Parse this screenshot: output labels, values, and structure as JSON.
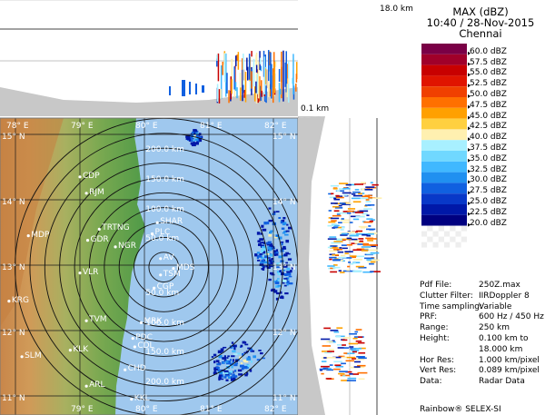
{
  "header": {
    "product": "MAX (dBZ)",
    "datetime": "10:40 / 28-Nov-2015",
    "station": "Chennai"
  },
  "top_panel": {
    "height_top_label": "18.0 km",
    "height_bottom_label": "0.1 km"
  },
  "legend": [
    {
      "label": "60.0 dBZ",
      "color": "#7a0046"
    },
    {
      "label": "57.5 dBZ",
      "color": "#a0002a"
    },
    {
      "label": "55.0 dBZ",
      "color": "#c80000"
    },
    {
      "label": "52.5 dBZ",
      "color": "#e01400"
    },
    {
      "label": "50.0 dBZ",
      "color": "#f04000"
    },
    {
      "label": "47.5 dBZ",
      "color": "#ff7000"
    },
    {
      "label": "45.0 dBZ",
      "color": "#ffa000"
    },
    {
      "label": "42.5 dBZ",
      "color": "#ffd040"
    },
    {
      "label": "40.0 dBZ",
      "color": "#fff0b0"
    },
    {
      "label": "37.5 dBZ",
      "color": "#a8f0ff"
    },
    {
      "label": "35.0 dBZ",
      "color": "#70d8ff"
    },
    {
      "label": "32.5 dBZ",
      "color": "#40b8ff"
    },
    {
      "label": "30.0 dBZ",
      "color": "#2090f0"
    },
    {
      "label": "27.5 dBZ",
      "color": "#1060e0"
    },
    {
      "label": "25.0 dBZ",
      "color": "#0838c8"
    },
    {
      "label": "22.5 dBZ",
      "color": "#0018a8"
    },
    {
      "label": "20.0 dBZ",
      "color": "#000080"
    }
  ],
  "info": [
    {
      "key": "Pdf File:",
      "value": "250Z.max"
    },
    {
      "key": "Clutter Filter:",
      "value": "IIRDoppler 8"
    },
    {
      "key": "Time sampling:",
      "value": "Variable"
    },
    {
      "key": "PRF:",
      "value": "600 Hz / 450 Hz"
    },
    {
      "key": "Range:",
      "value": "250 km"
    },
    {
      "key": "Height:",
      "value": "0.100 km to"
    },
    {
      "key": "",
      "value": "18.000 km"
    },
    {
      "key": "Hor Res:",
      "value": "1.000 km/pixel"
    },
    {
      "key": "Vert Res:",
      "value": "0.089 km/pixel"
    },
    {
      "key": "Data:",
      "value": "Radar Data"
    }
  ],
  "footer": "Rainbow® SELEX-SI",
  "map": {
    "lon_labels": [
      "78° E",
      "79° E",
      "80° E",
      "81° E",
      "82° E"
    ],
    "lon_labels_bottom": [
      "79° E",
      "80° E",
      "81° E",
      "82° E"
    ],
    "lat_labels_left": [
      "15° N",
      "14° N",
      "13° N",
      "12° N",
      "11° N"
    ],
    "lat_labels_right": [
      "15° N",
      "14° N",
      "13° N",
      "12° N",
      "11° N"
    ],
    "range_labels_north": [
      "200.0 km",
      "150.0 km",
      "100.0 km",
      "50.0 km"
    ],
    "range_labels_south": [
      "50.0 km",
      "100.0 km",
      "150.0 km",
      "200.0 km"
    ],
    "cities": [
      {
        "code": "CDP",
        "lon": 79.0,
        "lat": 14.35
      },
      {
        "code": "RJM",
        "lon": 79.1,
        "lat": 14.1
      },
      {
        "code": "TRTNG",
        "lon": 79.3,
        "lat": 13.55
      },
      {
        "code": "GDR",
        "lon": 79.12,
        "lat": 13.38
      },
      {
        "code": "MDP",
        "lon": 78.2,
        "lat": 13.45
      },
      {
        "code": "NGR",
        "lon": 79.55,
        "lat": 13.28
      },
      {
        "code": "SHAR",
        "lon": 80.2,
        "lat": 13.65
      },
      {
        "code": "PLC",
        "lon": 80.12,
        "lat": 13.48
      },
      {
        "code": "AV",
        "lon": 80.25,
        "lat": 13.1
      },
      {
        "code": "MDS",
        "lon": 80.45,
        "lat": 12.95
      },
      {
        "code": "TSM",
        "lon": 80.25,
        "lat": 12.85
      },
      {
        "code": "VLR",
        "lon": 79.0,
        "lat": 12.88
      },
      {
        "code": "KRG",
        "lon": 77.9,
        "lat": 12.45
      },
      {
        "code": "CGP",
        "lon": 80.15,
        "lat": 12.65
      },
      {
        "code": "TVM",
        "lon": 79.1,
        "lat": 12.15
      },
      {
        "code": "MRK",
        "lon": 79.95,
        "lat": 12.12
      },
      {
        "code": "PDC",
        "lon": 79.82,
        "lat": 11.88
      },
      {
        "code": "CDL",
        "lon": 79.85,
        "lat": 11.75
      },
      {
        "code": "KLK",
        "lon": 78.85,
        "lat": 11.7
      },
      {
        "code": "SLM",
        "lon": 78.1,
        "lat": 11.6
      },
      {
        "code": "CHD",
        "lon": 79.7,
        "lat": 11.4
      },
      {
        "code": "ARL",
        "lon": 79.1,
        "lat": 11.15
      },
      {
        "code": "KKL",
        "lon": 79.8,
        "lat": 10.95
      }
    ]
  }
}
